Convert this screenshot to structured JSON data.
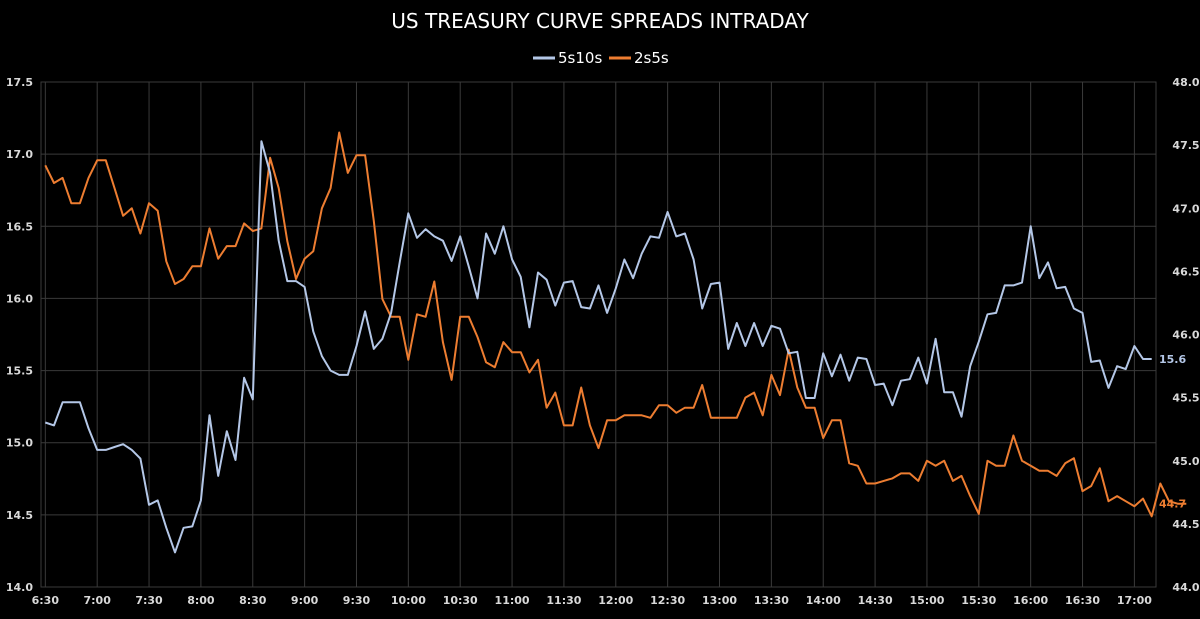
{
  "chart_data": {
    "type": "line",
    "title": "US TREASURY CURVE SPREADS INTRADAY",
    "legend_position": "top-center",
    "grid": true,
    "colors": {
      "5s10s": "#b4c7e7",
      "2s5s": "#ed7d31",
      "grid": "#3a3a3a",
      "background": "#000000"
    },
    "x_start": "6:30",
    "x_step_minutes": 5,
    "x_ticks": [
      "6:30",
      "7:00",
      "7:30",
      "8:00",
      "8:30",
      "9:00",
      "9:30",
      "10:00",
      "10:30",
      "11:00",
      "11:30",
      "12:00",
      "12:30",
      "13:00",
      "13:30",
      "14:00",
      "14:30",
      "15:00",
      "15:30",
      "16:00",
      "16:30",
      "17:00"
    ],
    "y_left": {
      "min": 14.0,
      "max": 17.5,
      "ticks": [
        "14.0",
        "14.5",
        "15.0",
        "15.5",
        "16.0",
        "16.5",
        "17.0",
        "17.5"
      ]
    },
    "y_right": {
      "min": 44.0,
      "max": 48.0,
      "ticks": [
        "44.0",
        "44.5",
        "45.0",
        "45.5",
        "46.0",
        "46.5",
        "47.0",
        "47.5",
        "48.0"
      ]
    },
    "series": [
      {
        "name": "5s10s",
        "axis": "left",
        "end_label": "15.6",
        "values": [
          15.14,
          15.12,
          15.28,
          15.28,
          15.28,
          15.1,
          14.95,
          14.95,
          14.97,
          14.99,
          14.95,
          14.89,
          14.57,
          14.6,
          14.41,
          14.24,
          14.41,
          14.42,
          14.6,
          15.19,
          14.77,
          15.08,
          14.88,
          15.45,
          15.3,
          17.09,
          16.87,
          16.4,
          16.12,
          16.12,
          16.08,
          15.77,
          15.6,
          15.5,
          15.47,
          15.47,
          15.67,
          15.91,
          15.65,
          15.72,
          15.9,
          16.25,
          16.59,
          16.42,
          16.48,
          16.43,
          16.4,
          16.26,
          16.43,
          16.22,
          16.0,
          16.45,
          16.31,
          16.5,
          16.27,
          16.15,
          15.8,
          16.18,
          16.13,
          15.95,
          16.11,
          16.12,
          15.94,
          15.93,
          16.09,
          15.9,
          16.07,
          16.27,
          16.14,
          16.31,
          16.43,
          16.42,
          16.6,
          16.43,
          16.45,
          16.27,
          15.93,
          16.1,
          16.11,
          15.65,
          15.83,
          15.67,
          15.83,
          15.67,
          15.81,
          15.79,
          15.62,
          15.63,
          15.31,
          15.31,
          15.62,
          15.46,
          15.61,
          15.43,
          15.59,
          15.58,
          15.4,
          15.41,
          15.26,
          15.43,
          15.44,
          15.59,
          15.41,
          15.72,
          15.35,
          15.35,
          15.18,
          15.53,
          15.7,
          15.89,
          15.9,
          16.09,
          16.09,
          16.11,
          16.5,
          16.14,
          16.25,
          16.07,
          16.08,
          15.93,
          15.9,
          15.56,
          15.57,
          15.38,
          15.53,
          15.51,
          15.67,
          15.58,
          15.58
        ]
      },
      {
        "name": "2s5s",
        "axis": "right",
        "end_label": "44.7",
        "values": [
          47.34,
          47.2,
          47.24,
          47.04,
          47.04,
          47.24,
          47.38,
          47.38,
          47.16,
          46.94,
          47.0,
          46.8,
          47.04,
          46.98,
          46.58,
          46.4,
          46.44,
          46.54,
          46.54,
          46.84,
          46.6,
          46.7,
          46.7,
          46.88,
          46.82,
          46.84,
          47.4,
          47.16,
          46.74,
          46.44,
          46.6,
          46.66,
          47.0,
          47.16,
          47.6,
          47.28,
          47.42,
          47.42,
          46.9,
          46.28,
          46.14,
          46.14,
          45.8,
          46.16,
          46.14,
          46.42,
          45.94,
          45.64,
          46.14,
          46.14,
          45.98,
          45.78,
          45.74,
          45.94,
          45.86,
          45.86,
          45.7,
          45.8,
          45.42,
          45.54,
          45.28,
          45.28,
          45.58,
          45.28,
          45.1,
          45.32,
          45.32,
          45.36,
          45.36,
          45.36,
          45.34,
          45.44,
          45.44,
          45.38,
          45.42,
          45.42,
          45.6,
          45.34,
          45.34,
          45.34,
          45.34,
          45.5,
          45.54,
          45.36,
          45.68,
          45.52,
          45.88,
          45.58,
          45.42,
          45.42,
          45.18,
          45.32,
          45.32,
          44.98,
          44.96,
          44.82,
          44.82,
          44.84,
          44.86,
          44.9,
          44.9,
          44.84,
          45.0,
          44.96,
          45.0,
          44.84,
          44.88,
          44.72,
          44.58,
          45.0,
          44.96,
          44.96,
          45.2,
          45.0,
          44.96,
          44.92,
          44.92,
          44.88,
          44.98,
          45.02,
          44.76,
          44.8,
          44.94,
          44.68,
          44.72,
          44.68,
          44.64,
          44.7,
          44.56,
          44.82,
          44.68,
          44.66,
          44.66
        ]
      }
    ]
  }
}
